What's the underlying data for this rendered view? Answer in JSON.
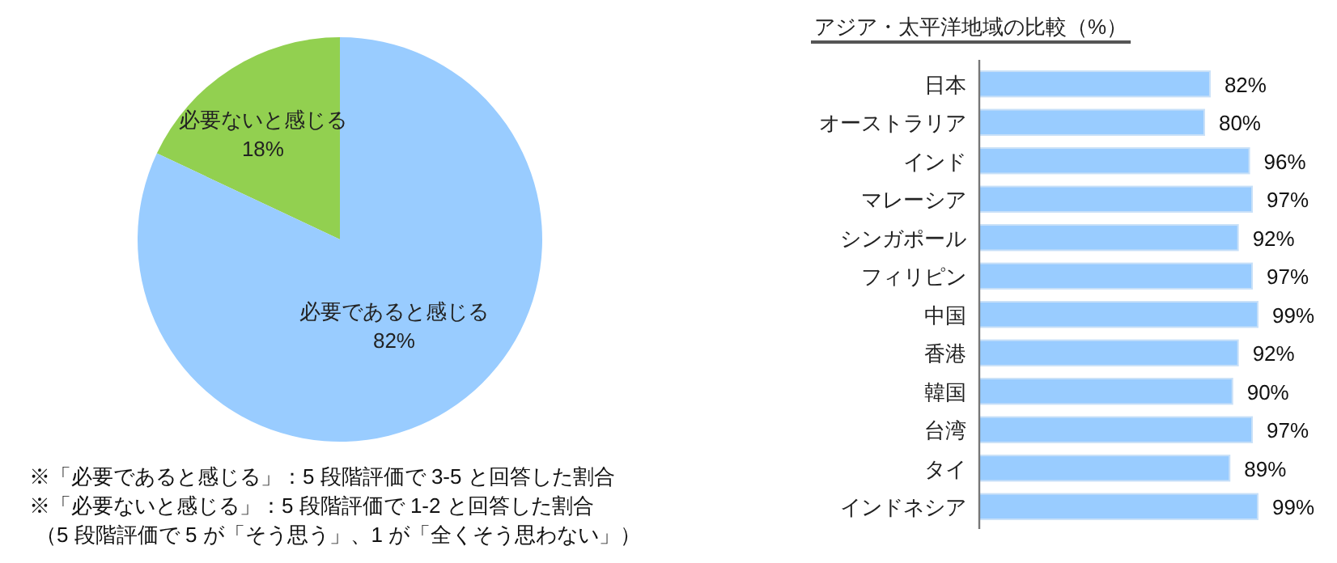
{
  "chart_data": [
    {
      "type": "pie",
      "categories": [
        "必要ないと感じる",
        "必要であると感じる"
      ],
      "values": [
        18,
        82
      ],
      "value_labels": [
        "18%",
        "82%"
      ],
      "colors": [
        "#92d050",
        "#99ccff"
      ],
      "annotations": [
        "※「必要であると感じる」：5 段階評価で 3-5 と回答した割合",
        "※「必要ないと感じる」：5 段階評価で 1-2 と回答した割合",
        "（5 段階評価で 5 が「そう思う」、1 が「全くそう思わない」）"
      ]
    },
    {
      "type": "bar",
      "orientation": "horizontal",
      "title": "アジア・太平洋地域の比較（%）",
      "categories": [
        "日本",
        "オーストラリア",
        "インド",
        "マレーシア",
        "シンガポール",
        "フィリピン",
        "中国",
        "香港",
        "韓国",
        "台湾",
        "タイ",
        "インドネシア"
      ],
      "values": [
        82,
        80,
        96,
        97,
        92,
        97,
        99,
        92,
        90,
        97,
        89,
        99
      ],
      "value_labels": [
        "82%",
        "80%",
        "96%",
        "97%",
        "92%",
        "97%",
        "99%",
        "92%",
        "90%",
        "97%",
        "89%",
        "99%"
      ],
      "color": "#99ccff"
    }
  ]
}
